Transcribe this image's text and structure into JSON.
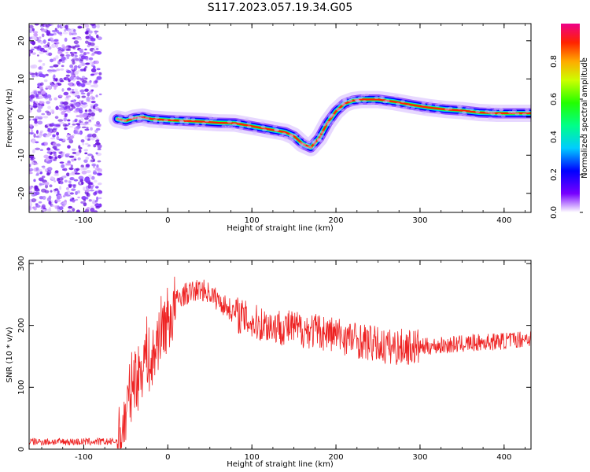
{
  "title": "S117.2023.057.19.34.G05",
  "chart_data": [
    {
      "type": "heatmap",
      "xlabel": "Height of straight line (km)",
      "ylabel": "Frequency (Hz)",
      "xlim": [
        -165,
        432
      ],
      "ylim": [
        -25,
        24.5
      ],
      "xticks": [
        -100,
        0,
        100,
        200,
        300,
        400
      ],
      "yticks": [
        -20,
        -10,
        0,
        10,
        20
      ],
      "colorbar": {
        "label": "Normalized spectral amplitude",
        "ticks": [
          0.0,
          0.2,
          0.4,
          0.6,
          0.8
        ],
        "range": [
          0,
          1
        ]
      },
      "ridge": {
        "x": [
          -60,
          -50,
          -40,
          -30,
          -20,
          0,
          20,
          40,
          60,
          80,
          100,
          120,
          140,
          150,
          160,
          170,
          180,
          190,
          200,
          210,
          220,
          230,
          250,
          270,
          290,
          310,
          330,
          350,
          370,
          390,
          410,
          432
        ],
        "y": [
          -0.5,
          -1.0,
          -0.3,
          0.0,
          -0.5,
          -0.8,
          -1.0,
          -1.2,
          -1.5,
          -1.6,
          -2.4,
          -3.2,
          -4.0,
          -5.0,
          -7.0,
          -8.0,
          -5.5,
          -1.5,
          1.5,
          3.5,
          4.3,
          4.6,
          4.6,
          4.0,
          3.2,
          2.5,
          2.0,
          1.7,
          1.2,
          1.0,
          1.0,
          1.0
        ]
      },
      "noise_region_x": [
        -165,
        -80
      ]
    },
    {
      "type": "line",
      "xlabel": "Height of straight line (km)",
      "ylabel": "SNR (10 * v/v)",
      "xlim": [
        -165,
        432
      ],
      "ylim": [
        0,
        305
      ],
      "xticks": [
        -100,
        0,
        100,
        200,
        300,
        400
      ],
      "yticks": [
        0,
        100,
        200,
        300
      ],
      "color": "#ee2222",
      "series": [
        {
          "x": [
            -165,
            -140,
            -110,
            -80,
            -65,
            -58,
            -52,
            -45,
            -40,
            -35,
            -30,
            -25,
            -20,
            -15,
            -10,
            -5,
            0,
            5,
            10,
            15,
            20,
            30,
            40,
            50,
            60,
            70,
            80,
            100,
            120,
            150,
            180,
            200,
            230,
            260,
            280,
            300,
            330,
            350,
            380,
            400,
            420,
            432
          ],
          "values": [
            12,
            12,
            12,
            12,
            12,
            15,
            40,
            90,
            120,
            115,
            140,
            160,
            130,
            160,
            190,
            200,
            210,
            215,
            240,
            245,
            250,
            255,
            258,
            252,
            240,
            230,
            220,
            205,
            200,
            195,
            190,
            185,
            175,
            165,
            165,
            165,
            168,
            170,
            173,
            175,
            178,
            180
          ]
        }
      ]
    }
  ]
}
